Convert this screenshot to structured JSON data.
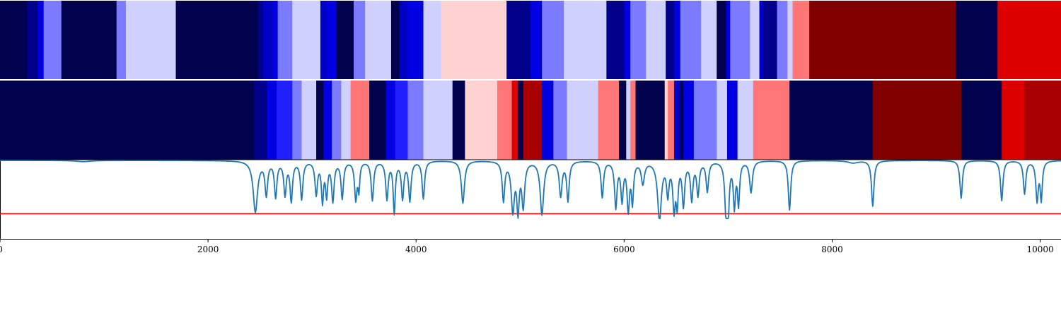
{
  "chart_data": {
    "type": "heatmap",
    "x_range": [
      0,
      10200
    ],
    "x_ticks": [
      {
        "value": 0,
        "label": "0"
      },
      {
        "value": 2000,
        "label": "2000"
      },
      {
        "value": 4000,
        "label": "4000"
      },
      {
        "value": 6000,
        "label": "6000"
      },
      {
        "value": 8000,
        "label": "8000"
      },
      {
        "value": 10000,
        "label": "10000"
      }
    ],
    "colormap": "seismic",
    "bands": [
      {
        "segments": [
          [
            0,
            260,
            "#00004c"
          ],
          [
            260,
            360,
            "#00008a"
          ],
          [
            360,
            420,
            "#0000e0"
          ],
          [
            420,
            590,
            "#7b7bff"
          ],
          [
            590,
            1120,
            "#00004c"
          ],
          [
            1120,
            1210,
            "#7b7bff"
          ],
          [
            1210,
            1690,
            "#d0d0ff"
          ],
          [
            1690,
            2480,
            "#00004c"
          ],
          [
            2480,
            2530,
            "#00008a"
          ],
          [
            2530,
            2620,
            "#0000c4"
          ],
          [
            2620,
            2670,
            "#0000e0"
          ],
          [
            2670,
            2810,
            "#7b7bff"
          ],
          [
            2810,
            3080,
            "#d0d0ff"
          ],
          [
            3080,
            3140,
            "#0000c4"
          ],
          [
            3140,
            3230,
            "#0000e0"
          ],
          [
            3230,
            3400,
            "#00004c"
          ],
          [
            3400,
            3510,
            "#7b7bff"
          ],
          [
            3510,
            3760,
            "#d0d0ff"
          ],
          [
            3760,
            3840,
            "#00004c"
          ],
          [
            3840,
            3920,
            "#0000c4"
          ],
          [
            3920,
            4070,
            "#0000e0"
          ],
          [
            4070,
            4240,
            "#d0d0ff"
          ],
          [
            4240,
            4870,
            "#ffd2d2"
          ],
          [
            4870,
            5100,
            "#00008a"
          ],
          [
            5100,
            5210,
            "#0000e0"
          ],
          [
            5210,
            5420,
            "#7b7bff"
          ],
          [
            5420,
            5830,
            "#d0d0ff"
          ],
          [
            5830,
            6000,
            "#00008a"
          ],
          [
            6000,
            6060,
            "#0000e0"
          ],
          [
            6060,
            6210,
            "#7b7bff"
          ],
          [
            6210,
            6400,
            "#d0d0ff"
          ],
          [
            6400,
            6480,
            "#00008a"
          ],
          [
            6480,
            6540,
            "#0000e0"
          ],
          [
            6540,
            6740,
            "#7b7bff"
          ],
          [
            6740,
            6890,
            "#d0d0ff"
          ],
          [
            6890,
            6980,
            "#00004c"
          ],
          [
            6980,
            7020,
            "#0000e0"
          ],
          [
            7020,
            7210,
            "#7b7bff"
          ],
          [
            7210,
            7300,
            "#d0d0ff"
          ],
          [
            7300,
            7340,
            "#0000c4"
          ],
          [
            7340,
            7470,
            "#00008a"
          ],
          [
            7470,
            7570,
            "#7b7bff"
          ],
          [
            7570,
            7620,
            "#d0d0ff"
          ],
          [
            7620,
            7780,
            "#ff7676"
          ],
          [
            7780,
            9190,
            "#800000"
          ],
          [
            9190,
            9590,
            "#00004c"
          ],
          [
            9590,
            10200,
            "#dc0000"
          ]
        ]
      },
      {
        "segments": [
          [
            0,
            2440,
            "#00004c"
          ],
          [
            2440,
            2570,
            "#00008a"
          ],
          [
            2570,
            2660,
            "#0000e0"
          ],
          [
            2660,
            2810,
            "#2020ff"
          ],
          [
            2810,
            2900,
            "#7b7bff"
          ],
          [
            2900,
            3040,
            "#d0d0ff"
          ],
          [
            3040,
            3110,
            "#00004c"
          ],
          [
            3110,
            3190,
            "#0000e0"
          ],
          [
            3190,
            3280,
            "#7b7bff"
          ],
          [
            3280,
            3370,
            "#d0d0ff"
          ],
          [
            3370,
            3550,
            "#ff7676"
          ],
          [
            3550,
            3710,
            "#00004c"
          ],
          [
            3710,
            3800,
            "#0000e0"
          ],
          [
            3800,
            3920,
            "#2020ff"
          ],
          [
            3920,
            4070,
            "#7b7bff"
          ],
          [
            4070,
            4350,
            "#d0d0ff"
          ],
          [
            4350,
            4470,
            "#00004c"
          ],
          [
            4470,
            4780,
            "#ffd2d2"
          ],
          [
            4780,
            4920,
            "#ff7676"
          ],
          [
            4920,
            4980,
            "#dc0000"
          ],
          [
            4980,
            5030,
            "#00004c"
          ],
          [
            5030,
            5210,
            "#a80000"
          ],
          [
            5210,
            5320,
            "#0000e0"
          ],
          [
            5320,
            5450,
            "#7b7bff"
          ],
          [
            5450,
            5750,
            "#d0d0ff"
          ],
          [
            5750,
            5950,
            "#ff7676"
          ],
          [
            5950,
            6020,
            "#00004c"
          ],
          [
            6020,
            6060,
            "#d0d0ff"
          ],
          [
            6060,
            6110,
            "#ff7676"
          ],
          [
            6110,
            6390,
            "#00004c"
          ],
          [
            6390,
            6420,
            "#ffd2d2"
          ],
          [
            6420,
            6480,
            "#ff7676"
          ],
          [
            6480,
            6540,
            "#0000c4"
          ],
          [
            6540,
            6570,
            "#00004c"
          ],
          [
            6570,
            6670,
            "#0000e0"
          ],
          [
            6670,
            6890,
            "#7b7bff"
          ],
          [
            6890,
            6990,
            "#d0d0ff"
          ],
          [
            6990,
            7090,
            "#0000e0"
          ],
          [
            7090,
            7240,
            "#d0d0ff"
          ],
          [
            7240,
            7590,
            "#ff7676"
          ],
          [
            7590,
            8390,
            "#00004c"
          ],
          [
            8390,
            9240,
            "#800000"
          ],
          [
            9240,
            9630,
            "#00004c"
          ],
          [
            9630,
            9850,
            "#dc0000"
          ],
          [
            9850,
            10200,
            "#a80000"
          ]
        ]
      }
    ],
    "threshold": {
      "y": 0.32,
      "color": "#ff0000"
    },
    "line": {
      "color": "#1f77b4",
      "y_range": [
        0,
        1
      ],
      "baseline": 1.0,
      "dips": [
        [
          800,
          0.985,
          80
        ],
        [
          2455,
          0.35,
          25
        ],
        [
          2560,
          0.58,
          15
        ],
        [
          2650,
          0.55,
          14
        ],
        [
          2740,
          0.58,
          14
        ],
        [
          2800,
          0.5,
          14
        ],
        [
          2900,
          0.52,
          14
        ],
        [
          3040,
          0.58,
          14
        ],
        [
          3100,
          0.5,
          12
        ],
        [
          3140,
          0.58,
          12
        ],
        [
          3200,
          0.5,
          14
        ],
        [
          3290,
          0.53,
          14
        ],
        [
          3420,
          0.52,
          14
        ],
        [
          3450,
          0.66,
          10
        ],
        [
          3580,
          0.5,
          14
        ],
        [
          3720,
          0.52,
          14
        ],
        [
          3790,
          0.35,
          12
        ],
        [
          3870,
          0.53,
          14
        ],
        [
          3940,
          0.5,
          14
        ],
        [
          4070,
          0.52,
          14
        ],
        [
          4450,
          0.46,
          18
        ],
        [
          4840,
          0.5,
          14
        ],
        [
          4930,
          0.38,
          18
        ],
        [
          4980,
          0.4,
          14
        ],
        [
          5030,
          0.44,
          16
        ],
        [
          5210,
          0.32,
          20
        ],
        [
          5390,
          0.56,
          16
        ],
        [
          5460,
          0.5,
          14
        ],
        [
          5790,
          0.54,
          14
        ],
        [
          5920,
          0.42,
          14
        ],
        [
          5980,
          0.52,
          14
        ],
        [
          6040,
          0.4,
          14
        ],
        [
          6080,
          0.5,
          12
        ],
        [
          6180,
          0.72,
          18
        ],
        [
          6340,
          0.26,
          22
        ],
        [
          6420,
          0.6,
          14
        ],
        [
          6480,
          0.42,
          14
        ],
        [
          6510,
          0.5,
          12
        ],
        [
          6570,
          0.45,
          14
        ],
        [
          6650,
          0.52,
          14
        ],
        [
          6710,
          0.58,
          14
        ],
        [
          6800,
          0.62,
          14
        ],
        [
          6980,
          0.36,
          14
        ],
        [
          7000,
          0.4,
          12
        ],
        [
          7060,
          0.44,
          12
        ],
        [
          7100,
          0.46,
          12
        ],
        [
          7220,
          0.6,
          16
        ],
        [
          7590,
          0.37,
          14
        ],
        [
          8200,
          0.97,
          60
        ],
        [
          8390,
          0.42,
          14
        ],
        [
          9240,
          0.52,
          14
        ],
        [
          9630,
          0.49,
          14
        ],
        [
          9850,
          0.58,
          14
        ],
        [
          9970,
          0.5,
          14
        ],
        [
          10010,
          0.52,
          12
        ]
      ]
    }
  }
}
